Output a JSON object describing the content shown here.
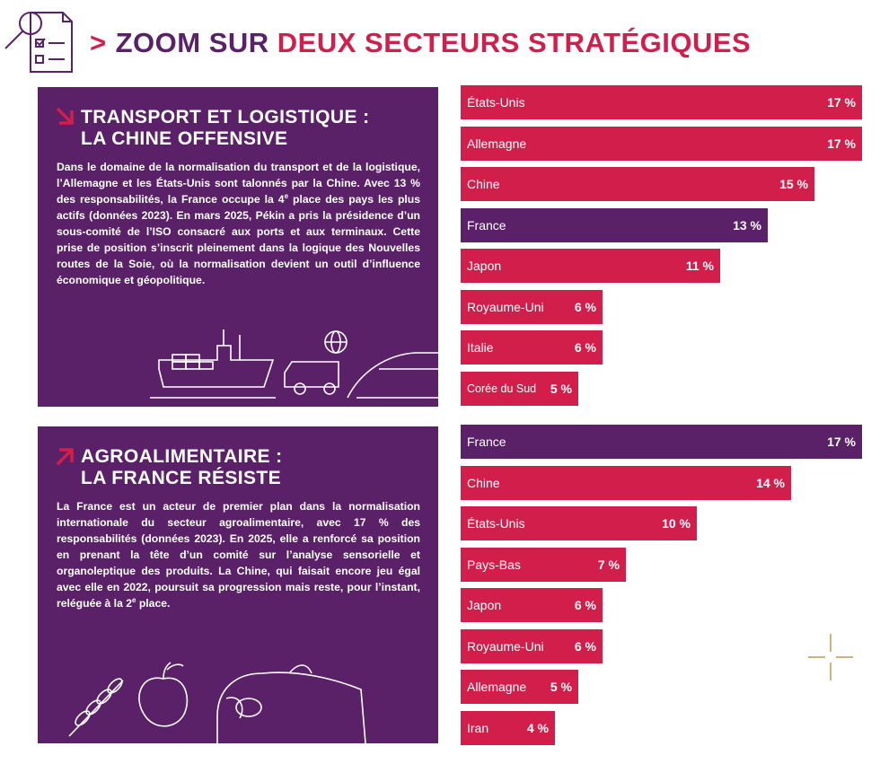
{
  "header": {
    "title_part1": "ZOOM SUR ",
    "title_part2": "DEUX SECTEURS STRATÉGIQUES"
  },
  "colors": {
    "purple": "#5a2168",
    "red": "#d21e4b",
    "white": "#ffffff",
    "gold": "#b99a57"
  },
  "sections": [
    {
      "title_line1": "TRANSPORT ET LOGISTIQUE :",
      "title_line2": "LA CHINE OFFENSIVE",
      "text_part1": "Dans le domaine de la normalisation du transport et de la logistique, l’Allemagne et les États-Unis sont talonnés par la Chine. Avec 13 % des responsabilités, la France occupe la 4",
      "text_sup": "e",
      "text_part2": " place des pays les plus actifs (données 2023). En mars 2025, Pékin a pris la présidence d’un sous-comité de l’ISO consacré aux ports et aux terminaux. Cette prise de position s’inscrit pleinement dans la logique des Nouvelles routes de la Soie, où la normalisation devient un outil d’influence économique et géopolitique."
    },
    {
      "title_line1": "AGROALIMENTAIRE :",
      "title_line2": "LA FRANCE RÉSISTE",
      "text_part1": "La France est un acteur de premier plan dans la normalisation internationale du secteur agroalimentaire, avec 17 % des responsabilités (données 2023). En 2025, elle a renforcé sa position en prenant la tête d’un comité sur l’analyse sensorielle et organoleptique des produits. La Chine, qui faisait encore jeu égal avec elle en 2022, poursuit sa progression mais reste, pour l’instant, reléguée à la 2",
      "text_sup": "e",
      "text_part2": " place."
    }
  ],
  "chart_data": [
    {
      "type": "bar",
      "orientation": "horizontal",
      "title": "Transport et logistique",
      "unit": "%",
      "xlim": [
        0,
        17
      ],
      "categories": [
        "États-Unis",
        "Allemagne",
        "Chine",
        "France",
        "Japon",
        "Royaume-Uni",
        "Italie",
        "Corée du Sud"
      ],
      "values": [
        17,
        17,
        15,
        13,
        11,
        6,
        6,
        5
      ],
      "labels": [
        "17 %",
        "17 %",
        "15 %",
        "13 %",
        "11 %",
        "6 %",
        "6 %",
        "5 %"
      ],
      "highlight": "France"
    },
    {
      "type": "bar",
      "orientation": "horizontal",
      "title": "Agroalimentaire",
      "unit": "%",
      "xlim": [
        0,
        17
      ],
      "categories": [
        "France",
        "Chine",
        "États-Unis",
        "Pays-Bas",
        "Japon",
        "Royaume-Uni",
        "Allemagne",
        "Iran"
      ],
      "values": [
        17,
        14,
        10,
        7,
        6,
        6,
        5,
        4
      ],
      "labels": [
        "17 %",
        "14 %",
        "10 %",
        "7 %",
        "6 %",
        "6 %",
        "5 %",
        "4 %"
      ],
      "highlight": "France"
    }
  ]
}
